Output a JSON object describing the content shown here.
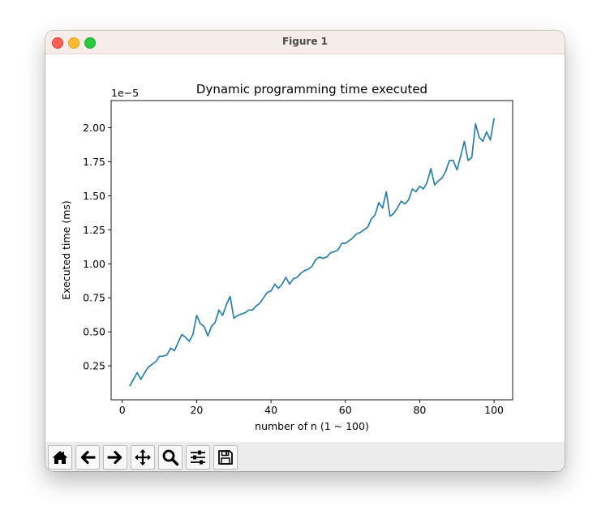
{
  "window": {
    "title": "Figure 1"
  },
  "toolbar": {
    "buttons": [
      "home-icon",
      "back-arrow-icon",
      "forward-arrow-icon",
      "pan-icon",
      "zoom-icon",
      "configure-subplots-icon",
      "save-icon"
    ]
  },
  "chart_data": {
    "type": "line",
    "title": "Dynamic programming time executed",
    "xlabel": "number of n (1 ~ 100)",
    "ylabel": "Executed time (ms)",
    "y_offset_label": "1e−5",
    "xlim": [
      -3,
      105
    ],
    "ylim": [
      0.0,
      2.2
    ],
    "xticks": [
      0,
      20,
      40,
      60,
      80,
      100
    ],
    "xtick_labels": [
      "0",
      "20",
      "40",
      "60",
      "80",
      "100"
    ],
    "yticks": [
      0.25,
      0.5,
      0.75,
      1.0,
      1.25,
      1.5,
      1.75,
      2.0
    ],
    "ytick_labels": [
      "0.25",
      "0.50",
      "0.75",
      "1.00",
      "1.25",
      "1.50",
      "1.75",
      "2.00"
    ],
    "grid": false,
    "series": [
      {
        "color": "#2a7fa8",
        "x": [
          2,
          3,
          4,
          5,
          6,
          7,
          8,
          9,
          10,
          11,
          12,
          13,
          14,
          15,
          16,
          17,
          18,
          19,
          20,
          21,
          22,
          23,
          24,
          25,
          26,
          27,
          28,
          29,
          30,
          31,
          32,
          33,
          34,
          35,
          36,
          37,
          38,
          39,
          40,
          41,
          42,
          43,
          44,
          45,
          46,
          47,
          48,
          49,
          50,
          51,
          52,
          53,
          54,
          55,
          56,
          57,
          58,
          59,
          60,
          61,
          62,
          63,
          64,
          65,
          66,
          67,
          68,
          69,
          70,
          71,
          72,
          73,
          74,
          75,
          76,
          77,
          78,
          79,
          80,
          81,
          82,
          83,
          84,
          85,
          86,
          87,
          88,
          89,
          90,
          91,
          92,
          93,
          94,
          95,
          96,
          97,
          98,
          99,
          100
        ],
        "y": [
          0.1,
          0.15,
          0.2,
          0.15,
          0.2,
          0.24,
          0.26,
          0.28,
          0.32,
          0.32,
          0.33,
          0.38,
          0.36,
          0.42,
          0.48,
          0.46,
          0.43,
          0.48,
          0.62,
          0.56,
          0.54,
          0.47,
          0.54,
          0.57,
          0.66,
          0.62,
          0.7,
          0.76,
          0.6,
          0.62,
          0.63,
          0.64,
          0.66,
          0.66,
          0.69,
          0.71,
          0.75,
          0.79,
          0.8,
          0.85,
          0.82,
          0.85,
          0.9,
          0.85,
          0.89,
          0.9,
          0.93,
          0.95,
          0.96,
          0.98,
          1.03,
          1.05,
          1.04,
          1.05,
          1.08,
          1.09,
          1.1,
          1.15,
          1.15,
          1.17,
          1.19,
          1.22,
          1.23,
          1.25,
          1.27,
          1.33,
          1.36,
          1.45,
          1.41,
          1.53,
          1.35,
          1.37,
          1.41,
          1.46,
          1.44,
          1.47,
          1.55,
          1.53,
          1.57,
          1.55,
          1.6,
          1.7,
          1.58,
          1.61,
          1.63,
          1.68,
          1.76,
          1.76,
          1.69,
          1.79,
          1.9,
          1.76,
          1.78,
          2.03,
          1.93,
          1.9,
          1.97,
          1.91,
          2.07
        ]
      }
    ]
  }
}
